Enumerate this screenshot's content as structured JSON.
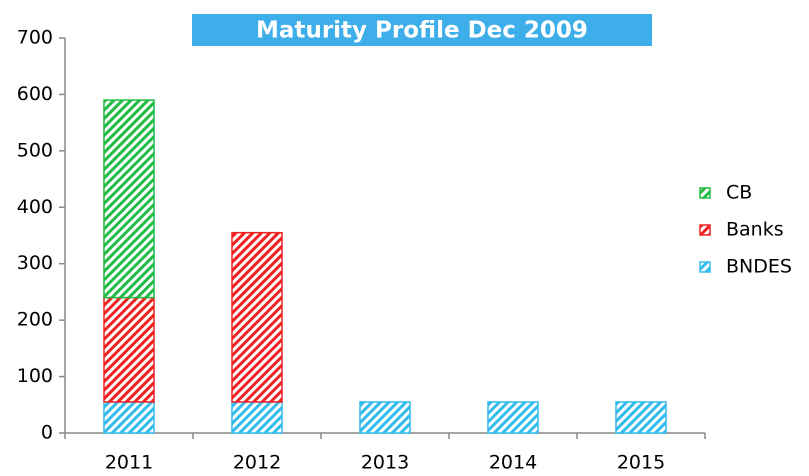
{
  "chart_data": {
    "type": "stacked_bar",
    "title": "Maturity Profile Dec 2009",
    "categories": [
      "2011",
      "2012",
      "2013",
      "2014",
      "2015"
    ],
    "series": [
      {
        "name": "BNDES",
        "color": "#33bbee",
        "values": [
          55,
          55,
          55,
          55,
          55
        ]
      },
      {
        "name": "Banks",
        "color": "#ee2222",
        "values": [
          185,
          300,
          0,
          0,
          0
        ]
      },
      {
        "name": "CB",
        "color": "#22bb44",
        "values": [
          350,
          0,
          0,
          0,
          0
        ]
      }
    ],
    "ylim": [
      0,
      700
    ],
    "yticks": [
      0,
      100,
      200,
      300,
      400,
      500,
      600,
      700
    ],
    "legend": "right",
    "grid": false,
    "pattern": "hatched"
  }
}
